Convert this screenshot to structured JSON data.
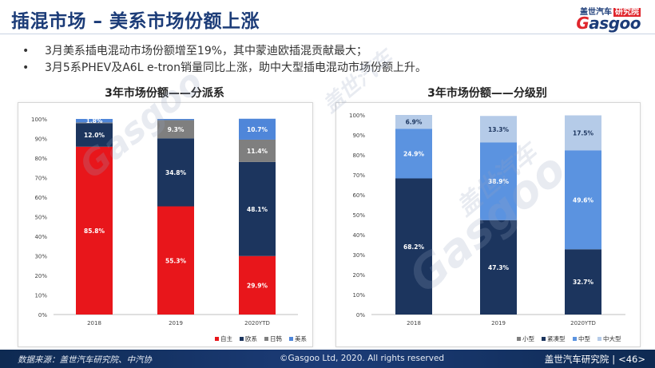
{
  "header": {
    "title": "插混市场 – 美系市场份额上涨",
    "logo_cn": "盖世汽车",
    "logo_badge": "研究院",
    "logo_en_g": "G",
    "logo_en_rest": "asgoo"
  },
  "bullets": [
    "3月美系插电混动市场份额增至19%，其中蒙迪欧插混贡献最大；",
    "3月5系PHEV及A6L e-tron销量同比上涨，助中大型插电混动市场份额上升。"
  ],
  "bullet_symbol": "•",
  "watermark": {
    "cn": "盖世汽车",
    "en": "Gasgoo"
  },
  "chart_data": [
    {
      "type": "bar",
      "stacked": true,
      "title": "3年市场份额——分派系",
      "categories": [
        "2018",
        "2019",
        "2020YTD"
      ],
      "ylim": [
        0,
        100
      ],
      "yticks": [
        "0%",
        "10%",
        "20%",
        "30%",
        "40%",
        "50%",
        "60%",
        "70%",
        "80%",
        "90%",
        "100%"
      ],
      "grid": false,
      "legend_position": "bottom",
      "series": [
        {
          "name": "自主",
          "color": "#e8161b",
          "values": [
            85.8,
            55.3,
            29.9
          ],
          "labels": [
            "85.8%",
            "55.3%",
            "29.9%"
          ]
        },
        {
          "name": "欧系",
          "color": "#1c355e",
          "values": [
            12.0,
            34.8,
            48.1
          ],
          "labels": [
            "12.0%",
            "34.8%",
            "48.1%"
          ]
        },
        {
          "name": "日韩",
          "color": "#7f7f7f",
          "values": [
            0.4,
            9.3,
            11.4
          ],
          "labels": [
            "",
            "9.3%",
            "11.4%"
          ]
        },
        {
          "name": "美系",
          "color": "#4f86d9",
          "values": [
            1.8,
            0.6,
            10.7
          ],
          "labels": [
            "1.8%",
            "",
            "10.7%"
          ]
        }
      ]
    },
    {
      "type": "bar",
      "stacked": true,
      "title": "3年市场份额——分级别",
      "categories": [
        "2018",
        "2019",
        "2020YTD"
      ],
      "ylim": [
        0,
        100
      ],
      "yticks": [
        "0%",
        "10%",
        "20%",
        "30%",
        "40%",
        "50%",
        "60%",
        "70%",
        "80%",
        "90%",
        "100%"
      ],
      "grid": false,
      "legend_position": "bottom",
      "series": [
        {
          "name": "小型",
          "color": "#7f7f7f",
          "values": [
            0,
            0,
            0
          ],
          "labels": [
            "",
            "",
            ""
          ]
        },
        {
          "name": "紧凑型",
          "color": "#1c355e",
          "values": [
            68.2,
            47.3,
            32.7
          ],
          "labels": [
            "68.2%",
            "47.3%",
            "32.7%"
          ]
        },
        {
          "name": "中型",
          "color": "#5b93e0",
          "values": [
            24.9,
            38.9,
            49.6
          ],
          "labels": [
            "24.9%",
            "38.9%",
            "49.6%"
          ]
        },
        {
          "name": "中大型",
          "color": "#b5cbe8",
          "values": [
            6.9,
            13.3,
            17.5
          ],
          "labels": [
            "6.9%",
            "13.3%",
            "17.5%"
          ]
        }
      ]
    }
  ],
  "footer": {
    "source": "数据来源：盖世汽车研究院、中汽协",
    "copyright": "©Gasgoo Ltd, 2020. All rights reserved",
    "org": "盖世汽车研究院",
    "separator": "|",
    "page": "<46>"
  }
}
